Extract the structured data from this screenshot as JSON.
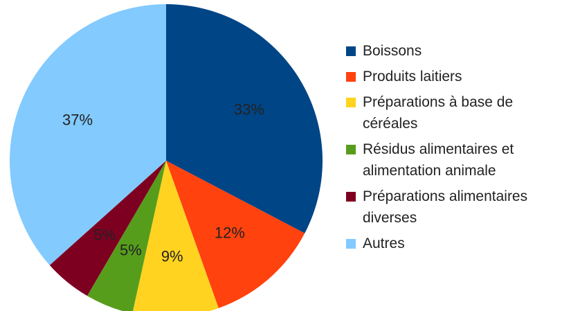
{
  "chart_data": {
    "type": "pie",
    "categories": [
      "Boissons",
      "Produits laitiers",
      "Préparations à base de céréales",
      "Résidus alimentaires et alimentation animale",
      "Préparations alimentaires diverses",
      "Autres"
    ],
    "values": [
      33,
      12,
      9,
      5,
      5,
      37
    ],
    "value_labels": [
      "33%",
      "12%",
      "9%",
      "5%",
      "5%",
      "37%"
    ],
    "colors": [
      "#004586",
      "#ff420e",
      "#ffd320",
      "#579d1c",
      "#7e0021",
      "#83caff"
    ],
    "legend": "right"
  }
}
